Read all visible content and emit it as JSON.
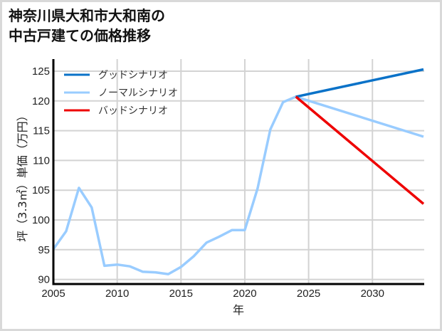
{
  "title_lines": [
    "神奈川県大和市大和南の",
    "中古戸建ての価格推移"
  ],
  "colors": {
    "good": "#0a72c8",
    "normal": "#99ccff",
    "bad": "#ee0000",
    "grid": "#d3d3d3",
    "axis": "#000000",
    "frame": "#d9d9d9"
  },
  "chart_data": {
    "type": "line",
    "title": "神奈川県大和市大和南の中古戸建ての価格推移",
    "xlabel": "年",
    "ylabel": "坪（3.3㎡）単価（万円）",
    "xlim": [
      2005,
      2034
    ],
    "ylim": [
      89.5,
      126.5
    ],
    "xticks": [
      2005,
      2010,
      2015,
      2020,
      2025,
      2030
    ],
    "yticks": [
      90,
      95,
      100,
      105,
      110,
      115,
      120,
      125
    ],
    "grid": true,
    "legend_position": "upper left",
    "series": [
      {
        "name": "グッドシナリオ",
        "color": "#0a72c8",
        "x": [
          2024,
          2034
        ],
        "y": [
          120.7,
          125.3
        ]
      },
      {
        "name": "ノーマルシナリオ",
        "color": "#99ccff",
        "x": [
          2005,
          2006,
          2007,
          2008,
          2009,
          2010,
          2011,
          2012,
          2013,
          2014,
          2015,
          2016,
          2017,
          2018,
          2019,
          2020,
          2021,
          2022,
          2023,
          2024,
          2034
        ],
        "y": [
          95.1,
          98.1,
          105.4,
          102.1,
          92.3,
          92.5,
          92.2,
          91.3,
          91.2,
          90.9,
          92.1,
          93.9,
          96.2,
          97.2,
          98.3,
          98.3,
          105.3,
          115.2,
          119.8,
          120.7,
          114.0
        ]
      },
      {
        "name": "バッドシナリオ",
        "color": "#ee0000",
        "x": [
          2024,
          2034
        ],
        "y": [
          120.7,
          102.7
        ]
      }
    ]
  }
}
